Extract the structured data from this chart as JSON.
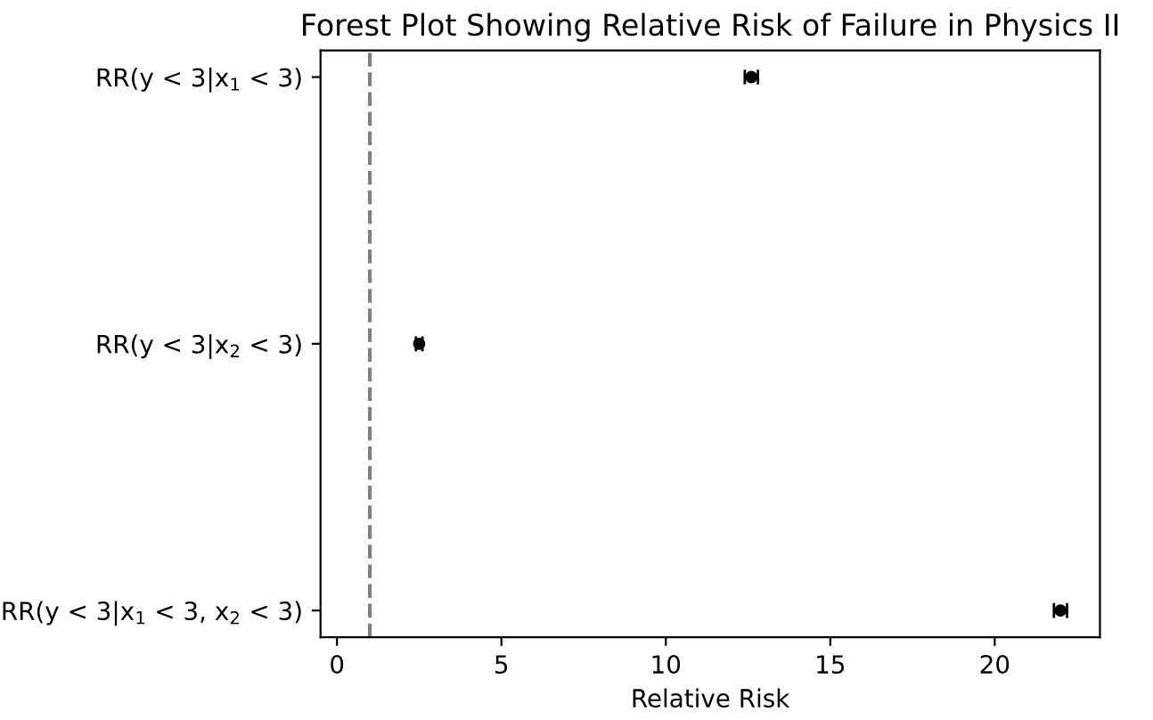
{
  "chart_data": {
    "type": "scatter",
    "title": "Forest Plot Showing Relative Risk of Failure in Physics II",
    "xlabel": "Relative Risk",
    "orientation": "horizontal",
    "categories": [
      "RR(y < 3|x$_{1}$ < 3)",
      "RR(y < 3|x$_{2}$ < 3)",
      "RR(y < 3|x$_{1}$ < 3, x$_{2}$ < 3)"
    ],
    "values": [
      12.6,
      2.5,
      22.0
    ],
    "errors": [
      0.2,
      0.1,
      0.2
    ],
    "color": "#000000",
    "marker": "circle",
    "xlim": [
      -0.5,
      23.2
    ],
    "xticks": [
      0,
      5,
      10,
      15,
      20
    ],
    "ref_lines": [
      {
        "axis": "x",
        "value": 1,
        "color": "#808080",
        "line_style": "dashed"
      }
    ],
    "grid": false
  }
}
